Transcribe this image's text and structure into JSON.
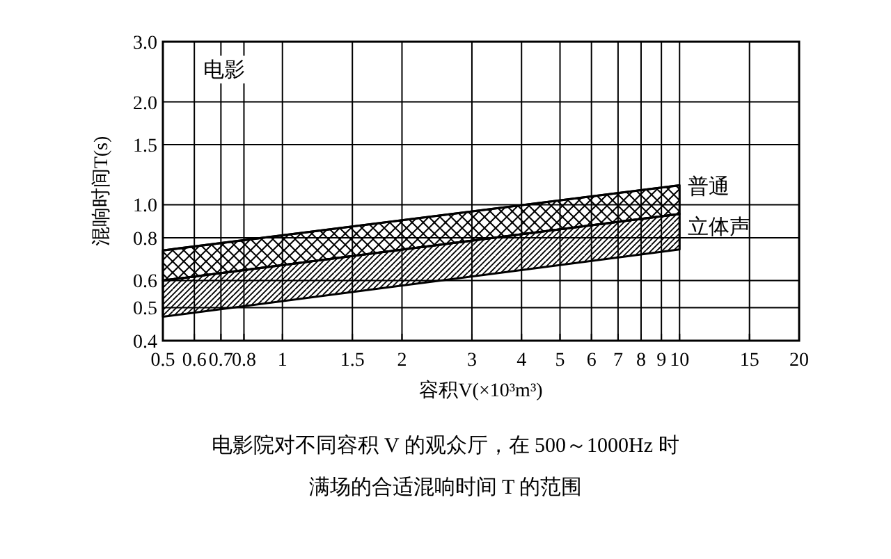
{
  "chart_data": {
    "type": "line",
    "title": "电影",
    "xlabel": "容积V(×10³m³)",
    "ylabel": "混响时间T(s)",
    "log": "xy",
    "grid": true,
    "x": [
      0.5,
      10
    ],
    "series": [
      {
        "name": "普通",
        "color": "#000000",
        "values": [
          0.735,
          1.14
        ],
        "upper": [
          0.735,
          1.14
        ],
        "lower": [
          0.6,
          0.94
        ]
      },
      {
        "name": "立体声",
        "color": "#000000",
        "values": [
          0.6,
          0.94
        ],
        "upper": [
          0.6,
          0.94
        ],
        "lower": [
          0.47,
          0.74
        ]
      }
    ],
    "xlim": [
      0.5,
      20
    ],
    "xticks": [
      0.5,
      0.6,
      0.7,
      0.8,
      1,
      1.5,
      2,
      3,
      4,
      5,
      6,
      7,
      8,
      9,
      10,
      15,
      20
    ],
    "ylim": [
      0.4,
      3
    ],
    "yticks": [
      0.4,
      0.5,
      0.6,
      0.8,
      {
        "value": 1,
        "label": "1.0"
      },
      1.5,
      {
        "value": 2,
        "label": "2.0"
      },
      {
        "value": 3,
        "label": "3.0"
      }
    ],
    "annotations": [
      "电影院对不同容积 V 的观众厅，在 500～1000Hz 时",
      "满场的合适混响时间 T 的范围"
    ]
  }
}
